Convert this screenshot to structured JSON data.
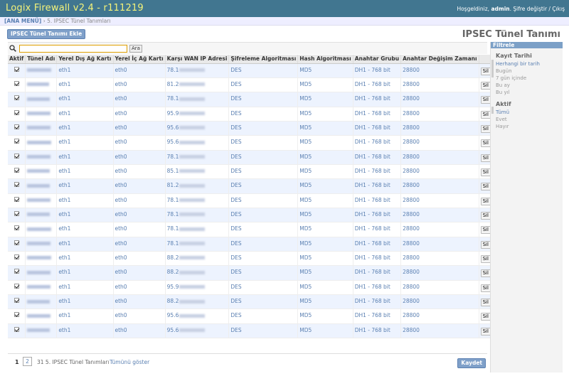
{
  "header": {
    "brand": "Logix Firewall v2.4 - r111219",
    "welcome": "Hoşgeldiniz,",
    "user": "admin",
    "change_password": "Şifre değiştir",
    "separator": "/",
    "logout": "Çıkış"
  },
  "breadcrumb": {
    "home": "[ANA MENÜ]",
    "sep": "›",
    "current": "5. IPSEC Tünel Tanımları"
  },
  "toolbar": {
    "add_label": "IPSEC Tünel Tanımı Ekle",
    "title": "IPSEC Tünel Tanımı"
  },
  "search": {
    "button": "Ara",
    "value": ""
  },
  "table": {
    "headers": [
      "Aktif",
      "Tünel Adı",
      "Yerel Dış Ağ Kartı",
      "Yerel İç Ağ Kartı",
      "Karşı WAN IP Adresi",
      "Şifreleme Algoritması",
      "Hash Algoritması",
      "Anahtar Grubu",
      "Anahtar Değişim Zamanı",
      ""
    ],
    "delete_label": "Sil",
    "rows": [
      {
        "ext": "eth1",
        "int": "eth0",
        "ip": "78.1",
        "enc": "DES",
        "hash": "MD5",
        "group": "DH1 - 768 bit",
        "time": "28800"
      },
      {
        "ext": "eth1",
        "int": "eth0",
        "ip": "81.2",
        "enc": "DES",
        "hash": "MD5",
        "group": "DH1 - 768 bit",
        "time": "28800"
      },
      {
        "ext": "eth1",
        "int": "eth0",
        "ip": "78.1",
        "enc": "DES",
        "hash": "MD5",
        "group": "DH1 - 768 bit",
        "time": "28800"
      },
      {
        "ext": "eth1",
        "int": "eth0",
        "ip": "95.9",
        "enc": "DES",
        "hash": "MD5",
        "group": "DH1 - 768 bit",
        "time": "28800"
      },
      {
        "ext": "eth1",
        "int": "eth0",
        "ip": "95.6",
        "enc": "DES",
        "hash": "MD5",
        "group": "DH1 - 768 bit",
        "time": "28800"
      },
      {
        "ext": "eth1",
        "int": "eth0",
        "ip": "95.6",
        "enc": "DES",
        "hash": "MD5",
        "group": "DH1 - 768 bit",
        "time": "28800"
      },
      {
        "ext": "eth1",
        "int": "eth0",
        "ip": "78.1",
        "enc": "DES",
        "hash": "MD5",
        "group": "DH1 - 768 bit",
        "time": "28800"
      },
      {
        "ext": "eth1",
        "int": "eth0",
        "ip": "85.1",
        "enc": "DES",
        "hash": "MD5",
        "group": "DH1 - 768 bit",
        "time": "28800"
      },
      {
        "ext": "eth1",
        "int": "eth0",
        "ip": "81.2",
        "enc": "DES",
        "hash": "MD5",
        "group": "DH1 - 768 bit",
        "time": "28800"
      },
      {
        "ext": "eth1",
        "int": "eth0",
        "ip": "78.1",
        "enc": "DES",
        "hash": "MD5",
        "group": "DH1 - 768 bit",
        "time": "28800"
      },
      {
        "ext": "eth1",
        "int": "eth0",
        "ip": "78.1",
        "enc": "DES",
        "hash": "MD5",
        "group": "DH1 - 768 bit",
        "time": "28800"
      },
      {
        "ext": "eth1",
        "int": "eth0",
        "ip": "78.1",
        "enc": "DES",
        "hash": "MD5",
        "group": "DH1 - 768 bit",
        "time": "28800"
      },
      {
        "ext": "eth1",
        "int": "eth0",
        "ip": "78.1",
        "enc": "DES",
        "hash": "MD5",
        "group": "DH1 - 768 bit",
        "time": "28800"
      },
      {
        "ext": "eth1",
        "int": "eth0",
        "ip": "88.2",
        "enc": "DES",
        "hash": "MD5",
        "group": "DH1 - 768 bit",
        "time": "28800"
      },
      {
        "ext": "eth1",
        "int": "eth0",
        "ip": "88.2",
        "enc": "DES",
        "hash": "MD5",
        "group": "DH1 - 768 bit",
        "time": "28800"
      },
      {
        "ext": "eth1",
        "int": "eth0",
        "ip": "95.9",
        "enc": "DES",
        "hash": "MD5",
        "group": "DH1 - 768 bit",
        "time": "28800"
      },
      {
        "ext": "eth1",
        "int": "eth0",
        "ip": "88.2",
        "enc": "DES",
        "hash": "MD5",
        "group": "DH1 - 768 bit",
        "time": "28800"
      },
      {
        "ext": "eth1",
        "int": "eth0",
        "ip": "95.6",
        "enc": "DES",
        "hash": "MD5",
        "group": "DH1 - 768 bit",
        "time": "28800"
      },
      {
        "ext": "eth1",
        "int": "eth0",
        "ip": "95.6",
        "enc": "DES",
        "hash": "MD5",
        "group": "DH1 - 768 bit",
        "time": "28800"
      }
    ]
  },
  "footer": {
    "page1": "1",
    "page2": "2",
    "count": "31 5. IPSEC Tünel Tanımları",
    "show_all": "Tümünü göster",
    "save": "Kaydet"
  },
  "filter": {
    "title": "Filtrele",
    "groups": [
      {
        "title": "Kayıt Tarihi",
        "items": [
          "Herhangi bir tarih",
          "Bugün",
          "7 gün içinde",
          "Bu ay",
          "Bu yıl"
        ]
      },
      {
        "title": "Aktif",
        "items": [
          "Tümü",
          "Evet",
          "Hayır"
        ]
      }
    ]
  },
  "colors": {
    "header_bg": "#417690",
    "brand": "#f4f379",
    "link": "#5b80b2",
    "row_alt": "#edf3fe",
    "button_bg": "#7fa0c9"
  }
}
